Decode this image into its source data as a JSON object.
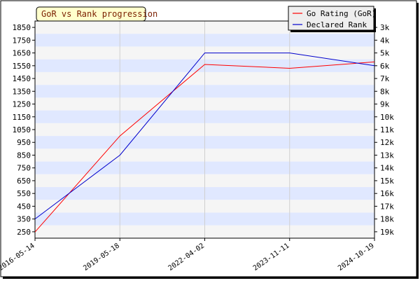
{
  "chart_data": {
    "type": "line",
    "title": "GoR vs Rank progression",
    "x": [
      "2016-05-14",
      "2019-05-18",
      "2022-04-02",
      "2023-11-11",
      "2024-10-19"
    ],
    "left_axis": {
      "ticks": [
        250,
        350,
        450,
        550,
        650,
        750,
        850,
        950,
        1050,
        1150,
        1250,
        1350,
        1450,
        1550,
        1650,
        1750,
        1850
      ],
      "range": [
        200,
        1900
      ]
    },
    "right_axis": {
      "ticks": [
        "3k",
        "4k",
        "5k",
        "6k",
        "7k",
        "8k",
        "9k",
        "10k",
        "11k",
        "12k",
        "13k",
        "14k",
        "15k",
        "16k",
        "17k",
        "18k",
        "19k"
      ],
      "range_kyu": [
        2.5,
        19.5
      ]
    },
    "series": [
      {
        "name": "Go Rating (GoR)",
        "axis": "left",
        "color": "#ff0000",
        "x": [
          "2016-05-14",
          "2019-05-18",
          "2022-04-02",
          "2023-11-11",
          "2024-10-19"
        ],
        "values": [
          248,
          1000,
          1560,
          1530,
          1580
        ]
      },
      {
        "name": "Declared Rank",
        "axis": "right",
        "color": "#0000cc",
        "x": [
          "2016-05-14",
          "2019-05-18",
          "2022-04-02",
          "2023-11-11",
          "2024-10-19"
        ],
        "values": [
          "18k",
          "13k",
          "5k",
          "5k",
          "6k"
        ]
      }
    ],
    "legend_position": "top-right",
    "grid": true
  }
}
